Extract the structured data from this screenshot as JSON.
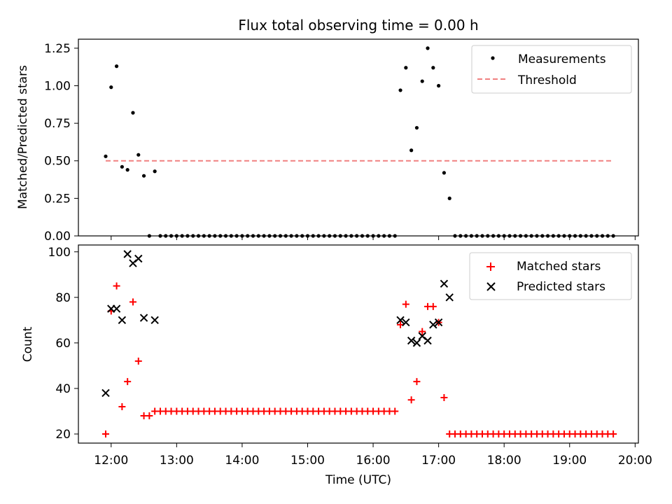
{
  "chart_data": [
    {
      "type": "scatter",
      "title": "Flux total observing time = 0.00 h",
      "xlabel": "",
      "ylabel": "Matched/Predicted stars",
      "xlim": [
        "11:30",
        "20:03"
      ],
      "ylim": [
        0,
        1.31
      ],
      "yticks": [
        "0.00",
        "0.25",
        "0.50",
        "0.75",
        "1.00",
        "1.25"
      ],
      "ytick_values": [
        0,
        0.25,
        0.5,
        0.75,
        1.0,
        1.25
      ],
      "legend": {
        "position": "top-right",
        "entries": [
          "Measurements",
          "Threshold"
        ]
      },
      "series": [
        {
          "name": "Measurements",
          "marker": "dot",
          "color": "#000000",
          "x": [
            "11:55",
            "12:00",
            "12:05",
            "12:10",
            "12:15",
            "12:20",
            "12:25",
            "12:30",
            "12:35",
            "12:40",
            "12:45",
            "12:50",
            "12:55",
            "13:00",
            "13:05",
            "13:10",
            "13:15",
            "13:20",
            "13:25",
            "13:30",
            "13:35",
            "13:40",
            "13:45",
            "13:50",
            "13:55",
            "14:00",
            "14:05",
            "14:10",
            "14:15",
            "14:20",
            "14:25",
            "14:30",
            "14:35",
            "14:40",
            "14:45",
            "14:50",
            "14:55",
            "15:00",
            "15:05",
            "15:10",
            "15:15",
            "15:20",
            "15:25",
            "15:30",
            "15:35",
            "15:40",
            "15:45",
            "15:50",
            "15:55",
            "16:00",
            "16:05",
            "16:10",
            "16:15",
            "16:20",
            "16:25",
            "16:30",
            "16:35",
            "16:40",
            "16:45",
            "16:50",
            "16:55",
            "17:00",
            "17:05",
            "17:10",
            "17:15",
            "17:20",
            "17:25",
            "17:30",
            "17:35",
            "17:40",
            "17:45",
            "17:50",
            "17:55",
            "18:00",
            "18:05",
            "18:10",
            "18:15",
            "18:20",
            "18:25",
            "18:30",
            "18:35",
            "18:40",
            "18:45",
            "18:50",
            "18:55",
            "19:00",
            "19:05",
            "19:10",
            "19:15",
            "19:20",
            "19:25",
            "19:30",
            "19:35",
            "19:40"
          ],
          "y": [
            0.53,
            0.99,
            1.13,
            0.46,
            0.44,
            0.82,
            0.54,
            0.4,
            0.0,
            0.43,
            0,
            0,
            0,
            0,
            0,
            0,
            0,
            0,
            0,
            0,
            0,
            0,
            0,
            0,
            0,
            0,
            0,
            0,
            0,
            0,
            0,
            0,
            0,
            0,
            0,
            0,
            0,
            0,
            0,
            0,
            0,
            0,
            0,
            0,
            0,
            0,
            0,
            0,
            0,
            0,
            0,
            0,
            0,
            0,
            0.97,
            1.12,
            0.57,
            0.72,
            1.03,
            1.25,
            1.12,
            1.0,
            0.42,
            0.25,
            0,
            0,
            0,
            0,
            0,
            0,
            0,
            0,
            0,
            0,
            0,
            0,
            0,
            0,
            0,
            0,
            0,
            0,
            0,
            0,
            0,
            0,
            0,
            0,
            0,
            0,
            0,
            0,
            0,
            0
          ]
        },
        {
          "name": "Threshold",
          "type": "line",
          "style": "dashed",
          "color": "#f08080",
          "x": [
            "11:55",
            "19:40"
          ],
          "y": [
            0.5,
            0.5
          ]
        }
      ]
    },
    {
      "type": "scatter",
      "title": "",
      "xlabel": "Time (UTC)",
      "ylabel": "Count",
      "xlim": [
        "11:30",
        "20:03"
      ],
      "ylim": [
        16,
        103
      ],
      "xticks": [
        "12:00",
        "13:00",
        "14:00",
        "15:00",
        "16:00",
        "17:00",
        "18:00",
        "19:00",
        "20:00"
      ],
      "yticks": [
        "20",
        "40",
        "60",
        "80",
        "100"
      ],
      "ytick_values": [
        20,
        40,
        60,
        80,
        100
      ],
      "legend": {
        "position": "top-right",
        "entries": [
          "Matched stars",
          "Predicted stars"
        ]
      },
      "series": [
        {
          "name": "Matched stars",
          "marker": "plus",
          "color": "#ff0000",
          "x": [
            "11:55",
            "12:00",
            "12:05",
            "12:10",
            "12:15",
            "12:20",
            "12:25",
            "12:30",
            "12:35",
            "12:40",
            "12:45",
            "12:50",
            "12:55",
            "13:00",
            "13:05",
            "13:10",
            "13:15",
            "13:20",
            "13:25",
            "13:30",
            "13:35",
            "13:40",
            "13:45",
            "13:50",
            "13:55",
            "14:00",
            "14:05",
            "14:10",
            "14:15",
            "14:20",
            "14:25",
            "14:30",
            "14:35",
            "14:40",
            "14:45",
            "14:50",
            "14:55",
            "15:00",
            "15:05",
            "15:10",
            "15:15",
            "15:20",
            "15:25",
            "15:30",
            "15:35",
            "15:40",
            "15:45",
            "15:50",
            "15:55",
            "16:00",
            "16:05",
            "16:10",
            "16:15",
            "16:20",
            "16:25",
            "16:30",
            "16:35",
            "16:40",
            "16:45",
            "16:50",
            "16:55",
            "17:00",
            "17:05",
            "17:10",
            "17:15",
            "17:20",
            "17:25",
            "17:30",
            "17:35",
            "17:40",
            "17:45",
            "17:50",
            "17:55",
            "18:00",
            "18:05",
            "18:10",
            "18:15",
            "18:20",
            "18:25",
            "18:30",
            "18:35",
            "18:40",
            "18:45",
            "18:50",
            "18:55",
            "19:00",
            "19:05",
            "19:10",
            "19:15",
            "19:20",
            "19:25",
            "19:30",
            "19:35",
            "19:40"
          ],
          "y": [
            20,
            74,
            85,
            32,
            43,
            78,
            52,
            28,
            28,
            30,
            30,
            30,
            30,
            30,
            30,
            30,
            30,
            30,
            30,
            30,
            30,
            30,
            30,
            30,
            30,
            30,
            30,
            30,
            30,
            30,
            30,
            30,
            30,
            30,
            30,
            30,
            30,
            30,
            30,
            30,
            30,
            30,
            30,
            30,
            30,
            30,
            30,
            30,
            30,
            30,
            30,
            30,
            30,
            30,
            68,
            77,
            35,
            43,
            65,
            76,
            76,
            69,
            36,
            20,
            20,
            20,
            20,
            20,
            20,
            20,
            20,
            20,
            20,
            20,
            20,
            20,
            20,
            20,
            20,
            20,
            20,
            20,
            20,
            20,
            20,
            20,
            20,
            20,
            20,
            20,
            20,
            20,
            20,
            20
          ]
        },
        {
          "name": "Predicted stars",
          "marker": "x",
          "color": "#000000",
          "x": [
            "11:55",
            "12:00",
            "12:05",
            "12:10",
            "12:15",
            "12:20",
            "12:25",
            "12:30",
            "12:40",
            "16:25",
            "16:30",
            "16:35",
            "16:40",
            "16:45",
            "16:50",
            "16:55",
            "17:00",
            "17:05",
            "17:10"
          ],
          "y": [
            38,
            75,
            75,
            70,
            99,
            95,
            97,
            71,
            70,
            70,
            69,
            61,
            60,
            63,
            61,
            68,
            69,
            86,
            80
          ]
        }
      ]
    }
  ]
}
